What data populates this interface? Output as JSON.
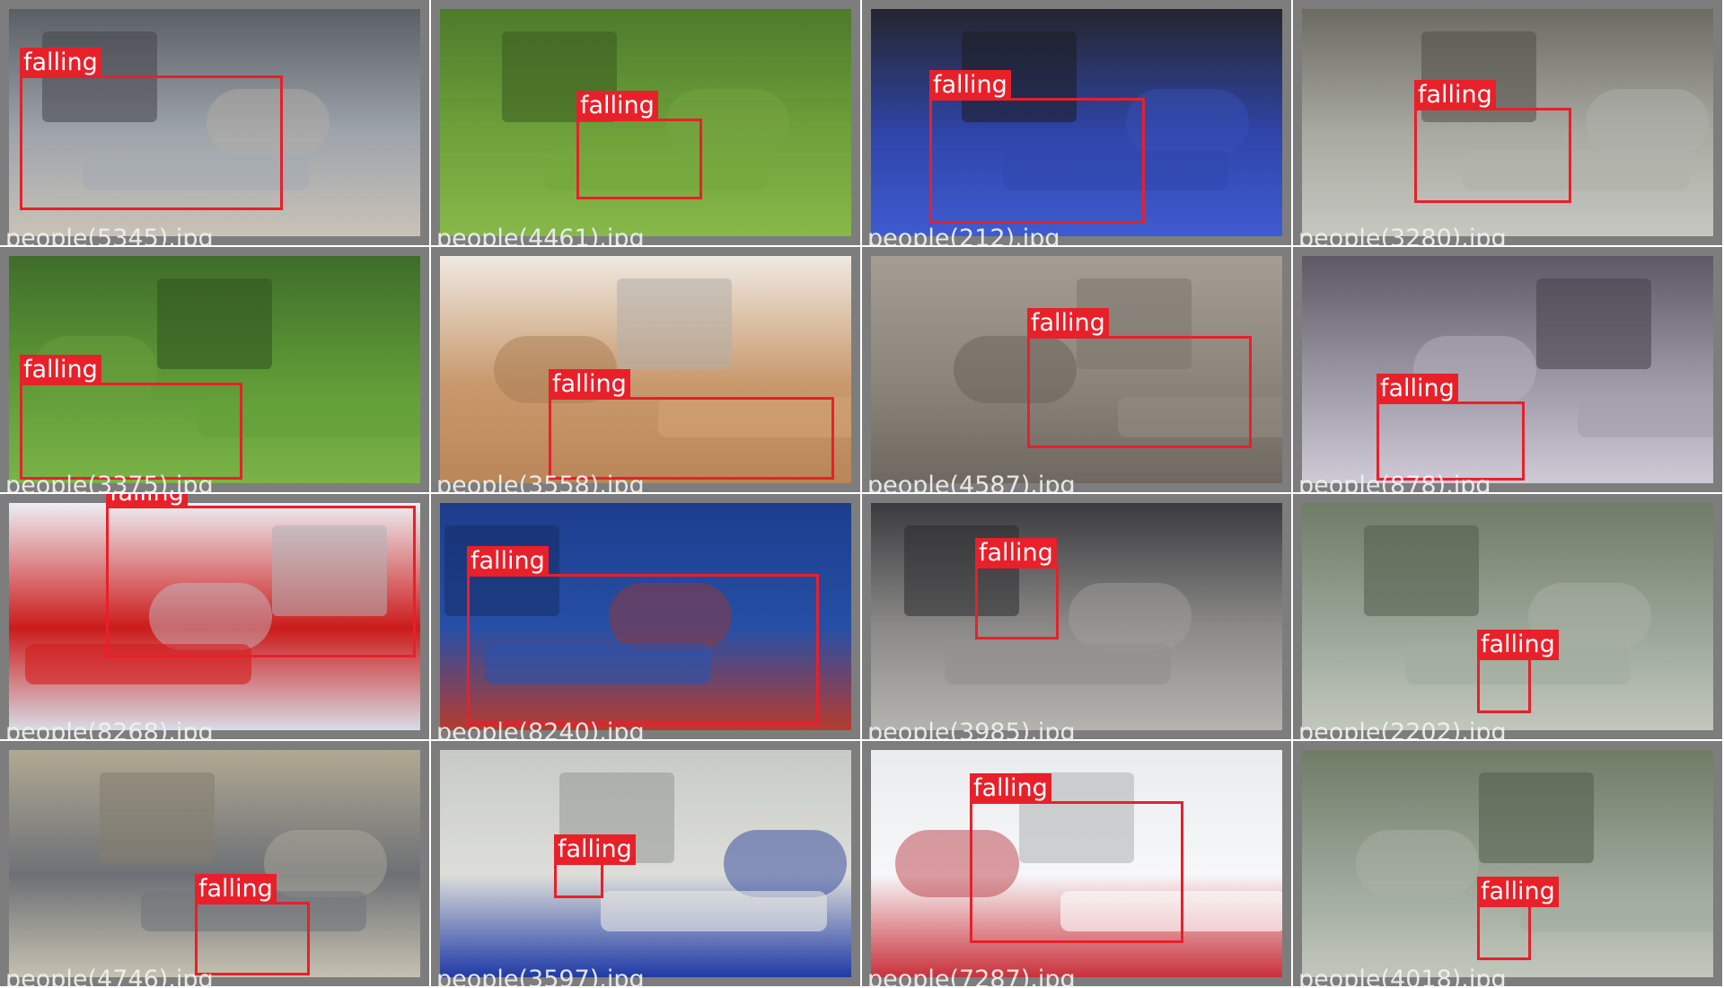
{
  "grid": {
    "columns": 4,
    "rows": 4,
    "background_color": "#7d7d7d",
    "box_color": "#e8202a",
    "label_text_color": "#ffffff"
  },
  "tiles": [
    {
      "filename": "people(5345).jpg",
      "label": "falling",
      "scene": [
        "#5a5f66",
        "#9ea4ab",
        "#c9c2b8"
      ]
    },
    {
      "filename": "people(4461).jpg",
      "label": "falling",
      "scene": [
        "#4d7a2c",
        "#6ea13a",
        "#88b84a"
      ]
    },
    {
      "filename": "people(212).jpg",
      "label": "falling",
      "scene": [
        "#25262e",
        "#2f45a8",
        "#3f5bd0"
      ]
    },
    {
      "filename": "people(3280).jpg",
      "label": "falling",
      "scene": [
        "#6b6b62",
        "#a9aaa2",
        "#c6c7c0"
      ]
    },
    {
      "filename": "people(3375).jpg",
      "label": "falling",
      "scene": [
        "#3f6d2a",
        "#5f9a36",
        "#7ab347"
      ]
    },
    {
      "filename": "people(3558).jpg",
      "label": "falling",
      "scene": [
        "#efe9e2",
        "#c99a6e",
        "#b98658"
      ]
    },
    {
      "filename": "people(4587).jpg",
      "label": "falling",
      "scene": [
        "#a59d93",
        "#8c857c",
        "#6f6860"
      ]
    },
    {
      "filename": "people(878).jpg",
      "label": "falling",
      "scene": [
        "#5e5866",
        "#9d98a6",
        "#cfcad6"
      ]
    },
    {
      "filename": "people(8268).jpg",
      "label": "falling",
      "scene": [
        "#eceef3",
        "#cc1b1b",
        "#d8dce6"
      ]
    },
    {
      "filename": "people(8240).jpg",
      "label": "falling",
      "scene": [
        "#1d3d8c",
        "#264fa6",
        "#b63b2e"
      ]
    },
    {
      "filename": "people(3985).jpg",
      "label": "falling",
      "scene": [
        "#3b3b3f",
        "#8b8a88",
        "#b5b3ae"
      ]
    },
    {
      "filename": "people(2202).jpg",
      "label": "falling",
      "scene": [
        "#6f7c66",
        "#9aa598",
        "#c2c7bc"
      ]
    },
    {
      "filename": "people(4746).jpg",
      "label": "falling",
      "scene": [
        "#b0a892",
        "#6d7176",
        "#c5c0b0"
      ]
    },
    {
      "filename": "people(3597).jpg",
      "label": "falling",
      "scene": [
        "#c8cac6",
        "#ddded9",
        "#1f3aa6"
      ]
    },
    {
      "filename": "people(7287).jpg",
      "label": "falling",
      "scene": [
        "#e9ecef",
        "#f6f7f8",
        "#c9313b"
      ]
    },
    {
      "filename": "people(4018).jpg",
      "label": "falling",
      "scene": [
        "#6f7c66",
        "#9aa598",
        "#c2c7bc"
      ]
    }
  ]
}
